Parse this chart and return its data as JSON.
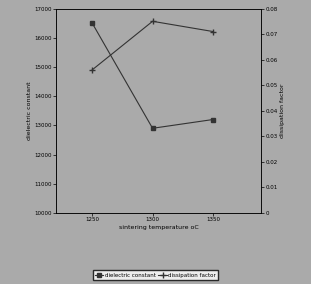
{
  "x": [
    1250,
    1300,
    1350
  ],
  "dielectric_constant": [
    16500,
    12900,
    13200
  ],
  "dissipation_factor": [
    0.056,
    0.075,
    0.071
  ],
  "xlabel": "sintering temperature oC",
  "ylabel_left": "dielectric constant",
  "ylabel_right": "dissipation factor",
  "ylim_left": [
    10000,
    17000
  ],
  "ylim_right": [
    0,
    0.08
  ],
  "yticks_left": [
    10000,
    11000,
    12000,
    13000,
    14000,
    15000,
    16000,
    17000
  ],
  "yticks_right": [
    0,
    0.01,
    0.02,
    0.03,
    0.04,
    0.05,
    0.06,
    0.07,
    0.08
  ],
  "xticks": [
    1250,
    1300,
    1350
  ],
  "legend_dc": "dielectric constant",
  "legend_df": "dissipation factor",
  "bg_color": "#aaaaaa",
  "line_color": "#333333",
  "marker_square": "s",
  "marker_plus": "+",
  "xlim": [
    1220,
    1390
  ]
}
